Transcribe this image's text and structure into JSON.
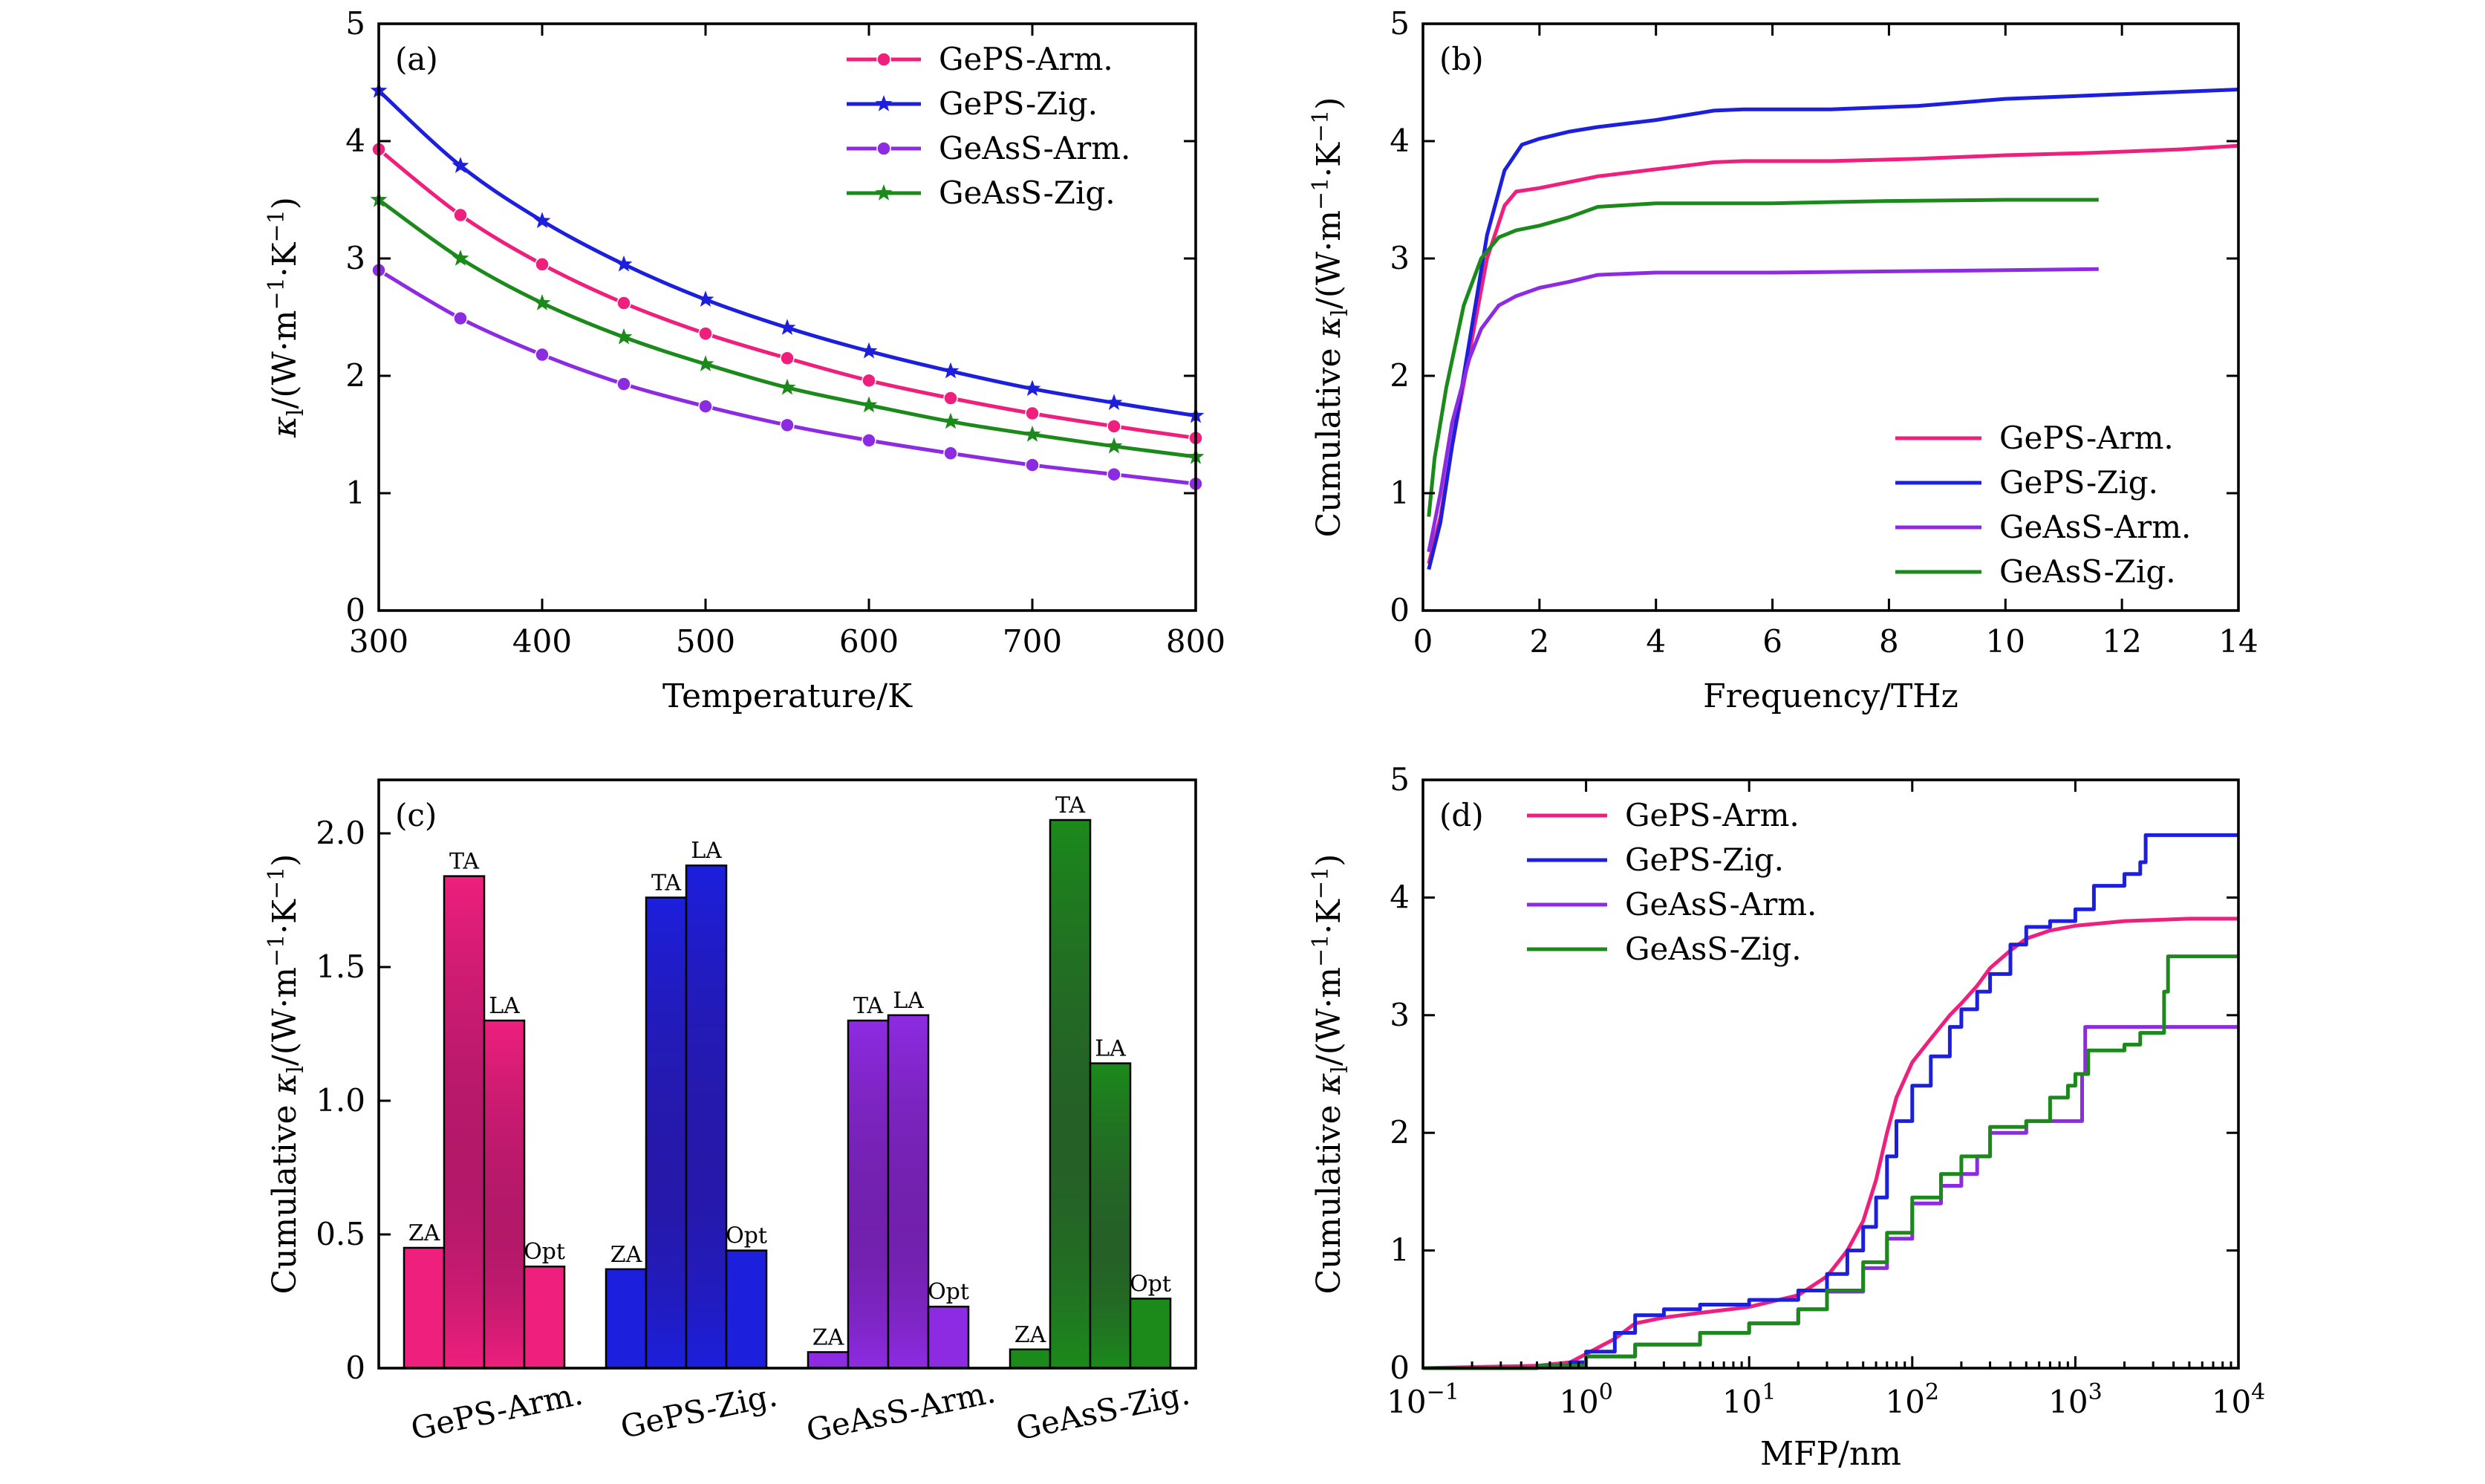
{
  "colors": {
    "GePS-Arm.": "#ee1f7d",
    "GePS-Zig.": "#1c1fdc",
    "GeAsS-Arm.": "#8d2be2",
    "GeAsS-Zig.": "#1b8a1b"
  },
  "chart_data": [
    {
      "panel": "(a)",
      "type": "line",
      "xlabel": "Temperature/K",
      "ylabel_main": "κ",
      "ylabel_sub": "l",
      "ylabel_rest": "/(W·m",
      "ylabel_unit": "·K",
      "ylabel_sup": "−1",
      "ylabel_close": ")",
      "xlim": [
        300,
        800
      ],
      "ylim": [
        0,
        5
      ],
      "xticks": [
        300,
        400,
        500,
        600,
        700,
        800
      ],
      "yticks": [
        0,
        1,
        2,
        3,
        4,
        5
      ],
      "legend_position": "top-right",
      "x": [
        300,
        350,
        400,
        450,
        500,
        550,
        600,
        650,
        700,
        750,
        800
      ],
      "series": [
        {
          "name": "GePS-Arm.",
          "marker": "circle",
          "values": [
            3.93,
            3.37,
            2.95,
            2.62,
            2.36,
            2.15,
            1.96,
            1.81,
            1.68,
            1.57,
            1.47
          ]
        },
        {
          "name": "GePS-Zig.",
          "marker": "star",
          "values": [
            4.43,
            3.79,
            3.32,
            2.95,
            2.65,
            2.41,
            2.21,
            2.04,
            1.89,
            1.77,
            1.66
          ]
        },
        {
          "name": "GeAsS-Arm.",
          "marker": "circle",
          "values": [
            2.9,
            2.49,
            2.18,
            1.93,
            1.74,
            1.58,
            1.45,
            1.34,
            1.24,
            1.16,
            1.08
          ]
        },
        {
          "name": "GeAsS-Zig.",
          "marker": "star",
          "values": [
            3.5,
            3.0,
            2.62,
            2.33,
            2.1,
            1.9,
            1.75,
            1.61,
            1.5,
            1.4,
            1.31
          ]
        }
      ]
    },
    {
      "panel": "(b)",
      "type": "line",
      "xlabel": "Frequency/THz",
      "ylabel_prefix": "Cumulative ",
      "ylabel_main": "κ",
      "ylabel_sub": "l",
      "ylabel_rest": "/(W·m",
      "ylabel_unit": "·K",
      "ylabel_sup": "−1",
      "ylabel_close": ")",
      "xlim": [
        0,
        14
      ],
      "ylim": [
        0,
        5
      ],
      "xticks": [
        0,
        2,
        4,
        6,
        8,
        10,
        12,
        14
      ],
      "yticks": [
        0,
        1,
        2,
        3,
        4,
        5
      ],
      "legend_position": "bottom-right",
      "series": [
        {
          "name": "GePS-Arm.",
          "x": [
            0.1,
            0.3,
            0.5,
            0.8,
            1.1,
            1.4,
            1.6,
            2.0,
            2.5,
            3.0,
            4.0,
            5.0,
            5.5,
            7.0,
            8.5,
            10.0,
            11.5,
            13.0,
            14.0
          ],
          "y": [
            0.4,
            0.8,
            1.4,
            2.2,
            3.0,
            3.45,
            3.57,
            3.6,
            3.65,
            3.7,
            3.76,
            3.82,
            3.83,
            3.83,
            3.85,
            3.88,
            3.9,
            3.93,
            3.96
          ]
        },
        {
          "name": "GePS-Zig.",
          "x": [
            0.1,
            0.3,
            0.5,
            0.8,
            1.1,
            1.4,
            1.7,
            2.0,
            2.5,
            3.0,
            4.0,
            5.0,
            5.5,
            7.0,
            8.5,
            10.0,
            11.5,
            13.0,
            14.0
          ],
          "y": [
            0.35,
            0.75,
            1.4,
            2.3,
            3.2,
            3.75,
            3.97,
            4.02,
            4.08,
            4.12,
            4.18,
            4.26,
            4.27,
            4.27,
            4.3,
            4.36,
            4.39,
            4.42,
            4.44
          ]
        },
        {
          "name": "GeAsS-Arm.",
          "x": [
            0.1,
            0.3,
            0.5,
            0.8,
            1.0,
            1.3,
            1.6,
            2.0,
            2.5,
            3.0,
            4.0,
            6.0,
            8.0,
            10.0,
            11.6
          ],
          "y": [
            0.5,
            1.0,
            1.6,
            2.15,
            2.4,
            2.6,
            2.68,
            2.75,
            2.8,
            2.86,
            2.88,
            2.88,
            2.89,
            2.9,
            2.91
          ]
        },
        {
          "name": "GeAsS-Zig.",
          "x": [
            0.1,
            0.2,
            0.4,
            0.7,
            1.0,
            1.3,
            1.6,
            2.0,
            2.5,
            3.0,
            4.0,
            6.0,
            8.0,
            10.0,
            11.6
          ],
          "y": [
            0.8,
            1.3,
            1.9,
            2.6,
            3.0,
            3.18,
            3.24,
            3.28,
            3.35,
            3.44,
            3.47,
            3.47,
            3.49,
            3.5,
            3.5
          ]
        }
      ]
    },
    {
      "panel": "(c)",
      "type": "bar",
      "ylabel_prefix": "Cumulative ",
      "ylabel_main": "κ",
      "ylabel_sub": "l",
      "ylabel_rest": "/(W·m",
      "ylabel_unit": "·K",
      "ylabel_sup": "−1",
      "ylabel_close": ")",
      "ylim": [
        0,
        2.2
      ],
      "yticks": [
        "0",
        "0.5",
        "1.0",
        "1.5",
        "2.0"
      ],
      "ytick_values": [
        0,
        0.5,
        1.0,
        1.5,
        2.0
      ],
      "groups": [
        {
          "name": "GePS-Arm.",
          "bars": [
            {
              "label": "ZA",
              "value": 0.45
            },
            {
              "label": "TA",
              "value": 1.84
            },
            {
              "label": "LA",
              "value": 1.3
            },
            {
              "label": "Opt",
              "value": 0.38
            }
          ]
        },
        {
          "name": "GePS-Zig.",
          "bars": [
            {
              "label": "ZA",
              "value": 0.37
            },
            {
              "label": "TA",
              "value": 1.76
            },
            {
              "label": "LA",
              "value": 1.88
            },
            {
              "label": "Opt",
              "value": 0.44
            }
          ]
        },
        {
          "name": "GeAsS-Arm.",
          "bars": [
            {
              "label": "ZA",
              "value": 0.06
            },
            {
              "label": "TA",
              "value": 1.3
            },
            {
              "label": "LA",
              "value": 1.32
            },
            {
              "label": "Opt",
              "value": 0.23
            }
          ]
        },
        {
          "name": "GeAsS-Zig.",
          "bars": [
            {
              "label": "ZA",
              "value": 0.07
            },
            {
              "label": "TA",
              "value": 2.05
            },
            {
              "label": "LA",
              "value": 1.14
            },
            {
              "label": "Opt",
              "value": 0.26
            }
          ]
        }
      ]
    },
    {
      "panel": "(d)",
      "type": "line",
      "xscale": "log",
      "xlabel": "MFP/nm",
      "ylabel_prefix": "Cumulative ",
      "ylabel_main": "κ",
      "ylabel_sub": "l",
      "ylabel_rest": "/(W·m",
      "ylabel_unit": "·K",
      "ylabel_sup": "−1",
      "ylabel_close": ")",
      "xlim": [
        0.1,
        10000
      ],
      "ylim": [
        0,
        5
      ],
      "xticks": [
        {
          "base": "10",
          "exp": "−1",
          "value": 0.1
        },
        {
          "base": "10",
          "exp": "0",
          "value": 1
        },
        {
          "base": "10",
          "exp": "1",
          "value": 10
        },
        {
          "base": "10",
          "exp": "2",
          "value": 100
        },
        {
          "base": "10",
          "exp": "3",
          "value": 1000
        },
        {
          "base": "10",
          "exp": "4",
          "value": 10000
        }
      ],
      "yticks": [
        0,
        1,
        2,
        3,
        4,
        5
      ],
      "legend_position": "top-left",
      "series": [
        {
          "name": "GePS-Arm.",
          "x": [
            0.1,
            0.5,
            0.8,
            1.0,
            1.5,
            2.0,
            3.0,
            5.0,
            10,
            20,
            30,
            40,
            50,
            60,
            70,
            80,
            100,
            130,
            170,
            200,
            250,
            300,
            400,
            500,
            700,
            1000,
            2000,
            5000,
            10000
          ],
          "y": [
            0,
            0.02,
            0.05,
            0.12,
            0.25,
            0.38,
            0.43,
            0.47,
            0.52,
            0.62,
            0.78,
            1.0,
            1.25,
            1.6,
            2.0,
            2.3,
            2.6,
            2.8,
            3.0,
            3.1,
            3.25,
            3.4,
            3.55,
            3.65,
            3.72,
            3.76,
            3.8,
            3.82,
            3.82
          ]
        },
        {
          "name": "GePS-Zig.",
          "x": [
            0.1,
            0.5,
            0.8,
            1.0,
            1.5,
            2.0,
            3.0,
            5.0,
            10,
            20,
            30,
            40,
            50,
            60,
            70,
            80,
            100,
            130,
            170,
            200,
            250,
            300,
            400,
            500,
            700,
            1000,
            1300,
            2000,
            2500,
            2700,
            5000,
            10000
          ],
          "y": [
            0,
            0.02,
            0.05,
            0.14,
            0.3,
            0.45,
            0.5,
            0.54,
            0.58,
            0.66,
            0.8,
            1.0,
            1.2,
            1.45,
            1.8,
            2.1,
            2.4,
            2.65,
            2.9,
            3.05,
            3.2,
            3.35,
            3.6,
            3.75,
            3.8,
            3.9,
            4.1,
            4.2,
            4.3,
            4.53,
            4.53,
            4.53
          ]
        },
        {
          "name": "GeAsS-Arm.",
          "x": [
            0.1,
            0.5,
            1.0,
            2.0,
            5.0,
            10,
            20,
            30,
            50,
            70,
            100,
            150,
            200,
            250,
            300,
            500,
            700,
            950,
            1100,
            1150,
            3000,
            10000
          ],
          "y": [
            0,
            0.02,
            0.1,
            0.2,
            0.3,
            0.38,
            0.5,
            0.65,
            0.85,
            1.1,
            1.4,
            1.55,
            1.65,
            1.8,
            2.0,
            2.1,
            2.1,
            2.1,
            2.5,
            2.9,
            2.9,
            2.9
          ]
        },
        {
          "name": "GeAsS-Zig.",
          "x": [
            0.1,
            0.5,
            1.0,
            2.0,
            5.0,
            10,
            20,
            30,
            50,
            70,
            100,
            150,
            200,
            300,
            500,
            700,
            900,
            1000,
            1200,
            2000,
            2500,
            3500,
            3700,
            10000
          ],
          "y": [
            0,
            0.02,
            0.1,
            0.2,
            0.3,
            0.38,
            0.5,
            0.66,
            0.9,
            1.15,
            1.45,
            1.65,
            1.8,
            2.05,
            2.1,
            2.3,
            2.4,
            2.5,
            2.7,
            2.75,
            2.85,
            3.2,
            3.5,
            3.5
          ]
        }
      ]
    }
  ]
}
